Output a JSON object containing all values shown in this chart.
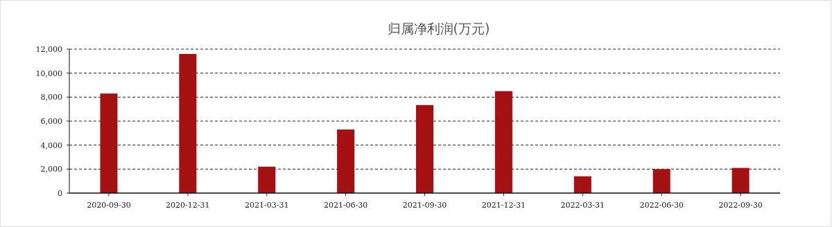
{
  "chart_data": {
    "type": "bar",
    "title": "归属净利润(万元)",
    "categories": [
      "2020-09-30",
      "2020-12-31",
      "2021-03-31",
      "2021-06-30",
      "2021-09-30",
      "2021-12-31",
      "2022-03-31",
      "2022-06-30",
      "2022-09-30"
    ],
    "values": [
      8300,
      11600,
      2200,
      5300,
      7340,
      8500,
      1400,
      2000,
      2100
    ],
    "color": "#a31113",
    "ylim": [
      0,
      12000
    ],
    "yticks": [
      {
        "value": 0,
        "label": "0"
      },
      {
        "value": 2000,
        "label": "2,000"
      },
      {
        "value": 4000,
        "label": "4,000"
      },
      {
        "value": 6000,
        "label": "6,000"
      },
      {
        "value": 8000,
        "label": "8,000"
      },
      {
        "value": 10000,
        "label": "10,000"
      },
      {
        "value": 12000,
        "label": "12,000"
      }
    ],
    "grid": "y"
  }
}
